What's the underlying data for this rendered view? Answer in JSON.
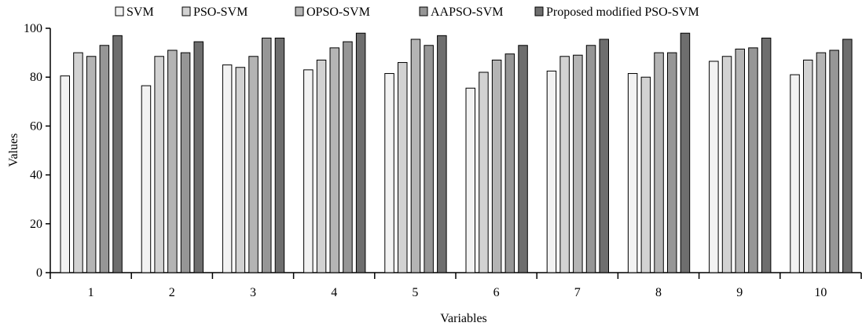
{
  "chart_data": {
    "type": "bar",
    "title": "",
    "xlabel": "Variables",
    "ylabel": "Values",
    "ylim": [
      0,
      100
    ],
    "yticks": [
      0,
      20,
      40,
      60,
      80,
      100
    ],
    "categories": [
      "1",
      "2",
      "3",
      "4",
      "5",
      "6",
      "7",
      "8",
      "9",
      "10"
    ],
    "legend_position": "top",
    "grid": false,
    "series": [
      {
        "name": "SVM",
        "color": "#f2f2f2",
        "values": [
          80.5,
          76.5,
          85,
          83,
          81.5,
          75.5,
          82.5,
          81.5,
          86.5,
          81
        ]
      },
      {
        "name": "PSO-SVM",
        "color": "#d2d2d2",
        "values": [
          90,
          88.5,
          84,
          87,
          86,
          82,
          88.5,
          80,
          88.5,
          87
        ]
      },
      {
        "name": "OPSO-SVM",
        "color": "#b4b4b4",
        "values": [
          88.5,
          91,
          88.5,
          92,
          95.5,
          87,
          89,
          90,
          91.5,
          90
        ]
      },
      {
        "name": "AAPSO-SVM",
        "color": "#969696",
        "values": [
          93,
          90,
          96,
          94.5,
          93,
          89.5,
          93,
          90,
          92,
          91
        ]
      },
      {
        "name": "Proposed modified PSO-SVM",
        "color": "#6e6e6e",
        "values": [
          97,
          94.5,
          96,
          98,
          97,
          93,
          95.5,
          98,
          96,
          95.5
        ]
      }
    ]
  }
}
